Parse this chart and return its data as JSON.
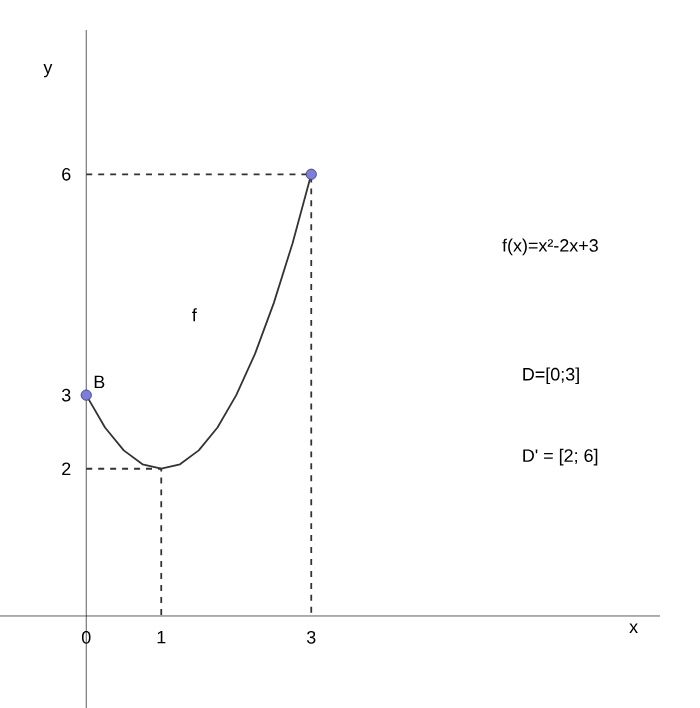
{
  "chart_data": {
    "type": "line",
    "xlabel": "x",
    "ylabel": "y",
    "xlim": [
      -1.15,
      7.65
    ],
    "ylim": [
      -1.25,
      7.96
    ],
    "xticks": [
      0,
      1,
      3
    ],
    "yticks": [
      2,
      3,
      6
    ],
    "grid": false,
    "series": [
      {
        "color": "#333333",
        "line_style": "solid",
        "marker": "none",
        "x": [
          0,
          0.25,
          0.5,
          0.75,
          1,
          1.25,
          1.5,
          1.75,
          2,
          2.25,
          2.5,
          2.75,
          3
        ],
        "values": [
          3,
          2.56,
          2.25,
          2.06,
          2,
          2.06,
          2.25,
          2.56,
          3,
          3.56,
          4.25,
          5.06,
          6
        ]
      },
      {
        "color": "#333333",
        "line_style": "dashed",
        "marker": "none",
        "x": [
          0,
          3,
          3
        ],
        "values": [
          6,
          6,
          0
        ]
      },
      {
        "color": "#333333",
        "line_style": "dashed",
        "marker": "none",
        "x": [
          0,
          1,
          1
        ],
        "values": [
          2,
          2,
          0
        ]
      },
      {
        "type": "scatter",
        "color": "#7d7ddb",
        "marker": "circle",
        "x": [
          0,
          3
        ],
        "values": [
          3,
          6
        ]
      }
    ],
    "annotations": [
      {
        "text": "B",
        "x": 0,
        "y": 3
      },
      "f",
      "f(x)=x²-2x+3",
      "D=[0;3]",
      "D' = [2; 6]"
    ]
  }
}
